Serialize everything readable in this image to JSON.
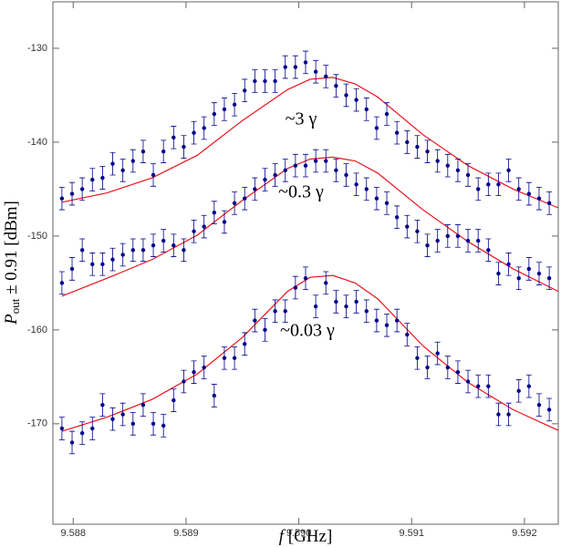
{
  "chart_data": {
    "type": "scatter",
    "xlabel": {
      "var": "f",
      "text": "[GHz]"
    },
    "ylabel": {
      "var": "P",
      "sub": "out",
      "text": "± 0.91 [dBm]"
    },
    "annotations": [
      "~3 γ",
      "~0.3 γ",
      "~0.03 γ"
    ],
    "xlim": [
      9.58782,
      9.5923
    ],
    "ylim": [
      -180.7,
      -125.05
    ],
    "xticks": [
      9.588,
      9.589,
      {
        "value": 9.59,
        "label": "9.590"
      },
      9.591,
      9.592
    ],
    "yticks": [
      -170,
      -160,
      -150,
      -140,
      -130
    ],
    "x": [
      9.5879,
      9.58799,
      9.58808,
      9.58817,
      9.58826,
      9.58835,
      9.58844,
      9.58853,
      9.58862,
      9.58871,
      9.5888,
      9.58889,
      9.58898,
      9.58907,
      9.58916,
      9.58925,
      9.58934,
      9.58943,
      9.58952,
      9.58961,
      9.5897,
      9.58979,
      9.58988,
      9.58997,
      9.59006,
      9.59015,
      9.59024,
      9.59033,
      9.59042,
      9.59051,
      9.5906,
      9.59069,
      9.59078,
      9.59087,
      9.59096,
      9.59105,
      9.59114,
      9.59123,
      9.59132,
      9.59141,
      9.5915,
      9.59159,
      9.59168,
      9.59177,
      9.59186,
      9.59195,
      9.59204,
      9.59213,
      9.59222
    ],
    "series": [
      {
        "color": "#00008b",
        "error": 1.2,
        "values": [
          -146,
          -145.5,
          -145,
          -144,
          -143.8,
          -142.3,
          -143,
          -142,
          -141,
          -143.5,
          -141,
          -139.5,
          -140.5,
          -139,
          -138.5,
          -137,
          -136.5,
          -136,
          -134.5,
          -133.5,
          -133.5,
          -133.5,
          -132,
          -132,
          -131.5,
          -132.5,
          -133,
          -134,
          -135,
          -135.5,
          -136.5,
          -138.5,
          -137,
          -139,
          -140,
          -140.5,
          -141,
          -142,
          -142.5,
          -143,
          -143.5,
          -145,
          -144.5,
          -144.5,
          -143,
          -145,
          -145.5,
          -146,
          -146.5
        ]
      },
      {
        "color": "#00008b",
        "error": 1.2,
        "values": [
          -155,
          -153.5,
          -151.5,
          -153,
          -153,
          -152.5,
          -152,
          -151.5,
          -151.5,
          -151,
          -150.5,
          -151,
          -151.5,
          -149.5,
          -149,
          -147.5,
          -148.5,
          -146.5,
          -146,
          -145,
          -144,
          -143.5,
          -143,
          -142.5,
          -142.5,
          -142,
          -142,
          -143,
          -143.5,
          -144.5,
          -145,
          -146,
          -146.5,
          -148,
          -149,
          -149.5,
          -151,
          -150.5,
          -150,
          -150,
          -150.5,
          -150.5,
          -151.5,
          -154,
          -153,
          -154.5,
          -153.5,
          -154,
          -154.5
        ]
      },
      {
        "color": "#00008b",
        "error": 1.2,
        "values": [
          -170.5,
          -172,
          -171,
          -170.5,
          -168,
          -169.5,
          -169,
          -170,
          -168,
          -170,
          -170.2,
          -167.5,
          -165.5,
          -164.5,
          -164,
          -167,
          -163,
          -163,
          -161.5,
          -159,
          -160,
          -158,
          -158,
          -155.5,
          -154.5,
          -157.5,
          -155,
          -157,
          -157.5,
          -157,
          -158,
          -159,
          -159.5,
          -159,
          -160.5,
          -163,
          -164,
          -162.5,
          -164,
          -164.5,
          -165.5,
          -166,
          -166,
          -169,
          -169,
          -166.5,
          -166,
          -168,
          -168.5
        ]
      }
    ],
    "fits": {
      "type": "line",
      "x": [
        9.5879,
        9.5883,
        9.5887,
        9.5891,
        9.5895,
        9.5899,
        9.5901,
        9.5903,
        9.5905,
        9.5907,
        9.5911,
        9.5915,
        9.5919,
        9.5923
      ],
      "series": [
        {
          "color": "#e8141e",
          "values": [
            -146.4,
            -145.4,
            -143.8,
            -141.4,
            -137.7,
            -134.4,
            -133.3,
            -133.1,
            -133.8,
            -135.2,
            -139.2,
            -142.5,
            -145,
            -147
          ]
        },
        {
          "color": "#e8141e",
          "values": [
            -156.4,
            -154.5,
            -152.5,
            -149.9,
            -146.2,
            -142.8,
            -141.8,
            -141.6,
            -142,
            -143.3,
            -147.2,
            -150.6,
            -153.5,
            -155.9
          ]
        },
        {
          "color": "#e8141e",
          "values": [
            -170.8,
            -169.3,
            -167.4,
            -164.7,
            -160.8,
            -155.9,
            -154.4,
            -154.2,
            -155,
            -156.7,
            -161.7,
            -165.6,
            -168.5,
            -170.7
          ]
        }
      ]
    }
  }
}
